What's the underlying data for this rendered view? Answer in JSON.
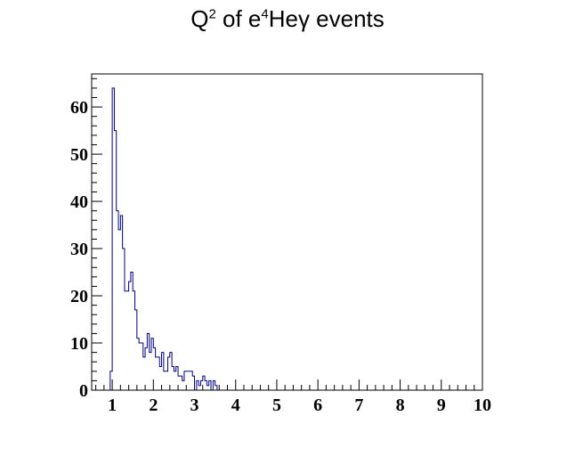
{
  "chart_data": {
    "type": "bar",
    "title": {
      "base": "Q",
      "base_sup": "2",
      "middle": " of e",
      "middle_sup": "4",
      "tail": "Heγ events"
    },
    "xlabel": "",
    "ylabel": "",
    "xlim": [
      0.5,
      10
    ],
    "ylim": [
      0,
      67
    ],
    "grid": false,
    "histogram_style": "step",
    "line_color": "#000080",
    "x_ticks": [
      1,
      2,
      3,
      4,
      5,
      6,
      7,
      8,
      9,
      10
    ],
    "y_ticks": [
      0,
      10,
      20,
      30,
      40,
      50,
      60
    ],
    "bin_width": 0.05,
    "bin_start": 0.95,
    "values": [
      4,
      64,
      55,
      38,
      34,
      37,
      30,
      21,
      21,
      23,
      25,
      21,
      17,
      11,
      10,
      10,
      7,
      9,
      12,
      8,
      11,
      9,
      7,
      7,
      5,
      8,
      4,
      4,
      7,
      8,
      5,
      4,
      5,
      3,
      3,
      2,
      4,
      4,
      4,
      4,
      3,
      0,
      2,
      1,
      2,
      3,
      2,
      1,
      2,
      0,
      2,
      1
    ]
  }
}
